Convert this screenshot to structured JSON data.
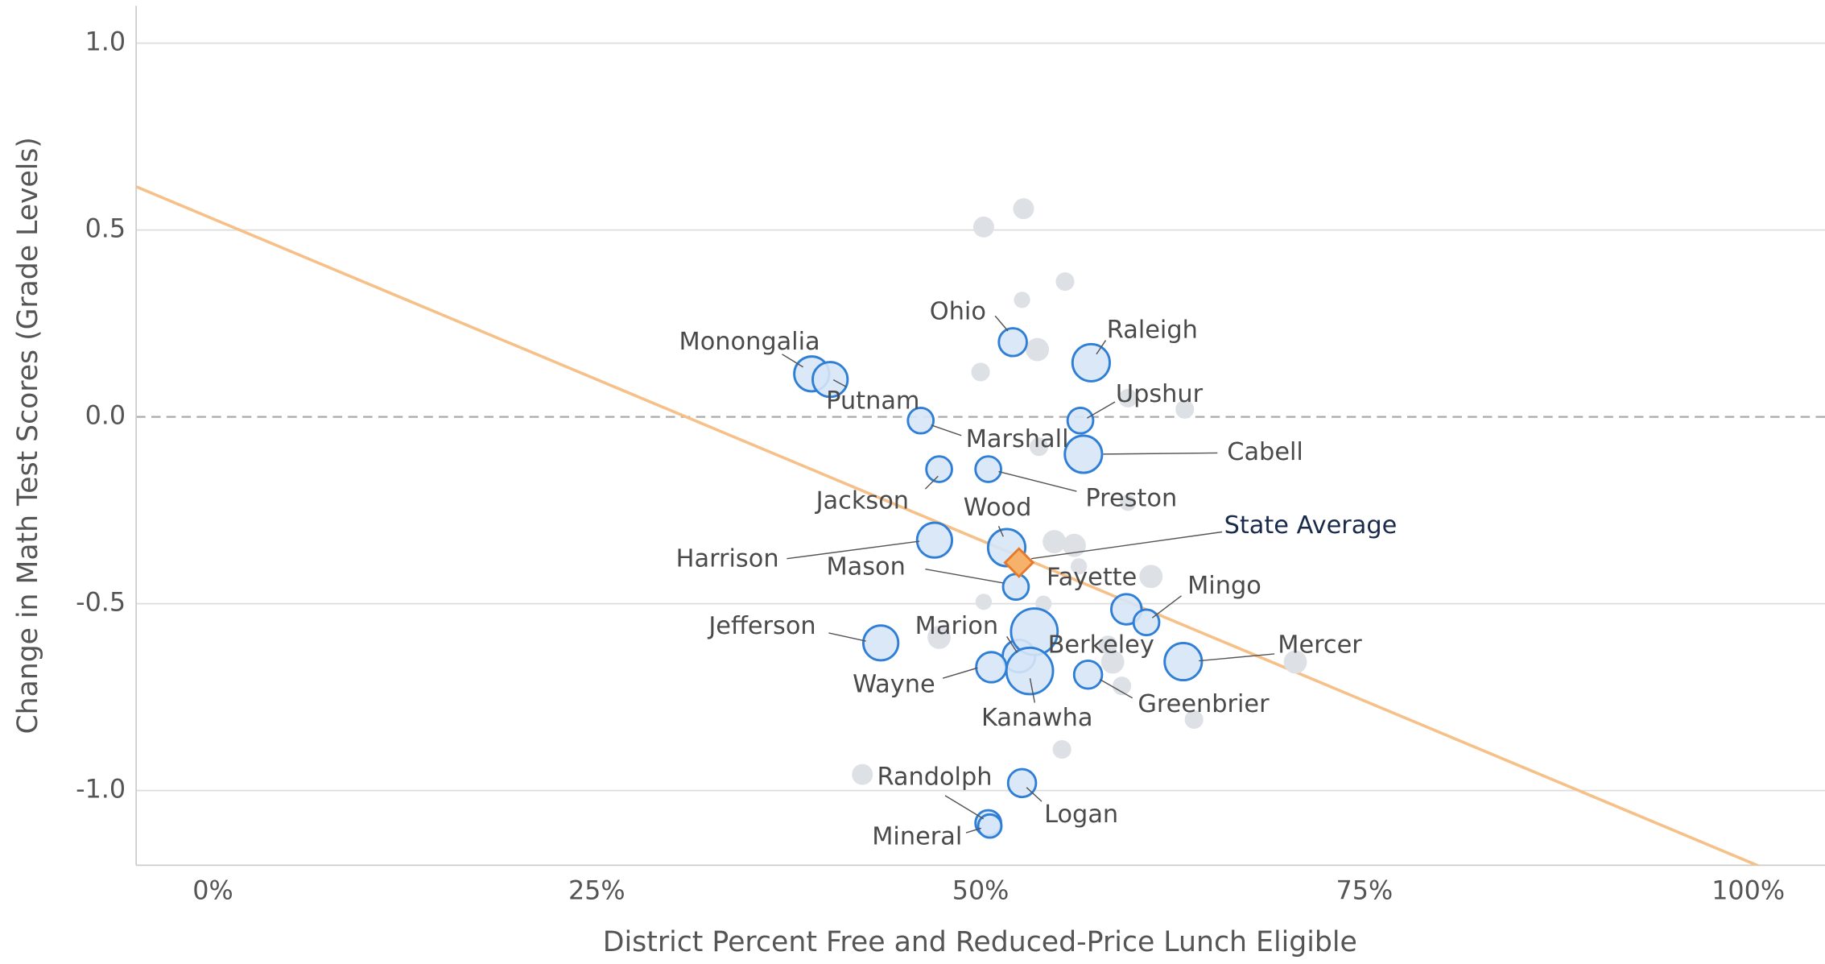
{
  "chart_data": {
    "type": "scatter",
    "x_label": "District Percent Free and Reduced-Price Lunch Eligible",
    "y_label": "Change in Math Test Scores (Grade Levels)",
    "xlim": [
      -5,
      105
    ],
    "ylim": [
      -1.2,
      1.1
    ],
    "xticks": [
      {
        "value": 0,
        "label": "0%"
      },
      {
        "value": 25,
        "label": "25%"
      },
      {
        "value": 50,
        "label": "50%"
      },
      {
        "value": 75,
        "label": "75%"
      },
      {
        "value": 100,
        "label": "100%"
      }
    ],
    "yticks": [
      {
        "value": -1,
        "label": "-1.0"
      },
      {
        "value": -0.5,
        "label": "-0.5"
      },
      {
        "value": 0,
        "label": "0.0"
      },
      {
        "value": 0.5,
        "label": "0.5"
      },
      {
        "value": 1,
        "label": "1.0"
      }
    ],
    "grid": true,
    "series": [
      {
        "name": "Monongalia",
        "color": "#2f7fd6",
        "x": [
          39.0
        ],
        "values": [
          0.115
        ],
        "sizes": [
          15
        ]
      },
      {
        "name": "Putnam",
        "color": "#2f7fd6",
        "x": [
          40.2
        ],
        "values": [
          0.1
        ],
        "sizes": [
          15
        ]
      },
      {
        "name": "Ohio",
        "color": "#2f7fd6",
        "x": [
          52.1
        ],
        "values": [
          0.2
        ],
        "sizes": [
          12
        ]
      },
      {
        "name": "Raleigh",
        "color": "#2f7fd6",
        "x": [
          57.2
        ],
        "values": [
          0.145
        ],
        "sizes": [
          16
        ]
      },
      {
        "name": "Upshur",
        "color": "#2f7fd6",
        "x": [
          56.5
        ],
        "values": [
          -0.01
        ],
        "sizes": [
          11
        ]
      },
      {
        "name": "Marshall",
        "color": "#2f7fd6",
        "x": [
          46.1
        ],
        "values": [
          -0.01
        ],
        "sizes": [
          11
        ]
      },
      {
        "name": "Cabell",
        "color": "#2f7fd6",
        "x": [
          56.7
        ],
        "values": [
          -0.1
        ],
        "sizes": [
          16
        ]
      },
      {
        "name": "Jackson",
        "color": "#2f7fd6",
        "x": [
          47.3
        ],
        "values": [
          -0.14
        ],
        "sizes": [
          11
        ]
      },
      {
        "name": "Preston",
        "color": "#2f7fd6",
        "x": [
          50.5
        ],
        "values": [
          -0.14
        ],
        "sizes": [
          11
        ]
      },
      {
        "name": "Wood",
        "color": "#2f7fd6",
        "x": [
          51.7
        ],
        "values": [
          -0.35
        ],
        "sizes": [
          16
        ]
      },
      {
        "name": "Harrison",
        "color": "#2f7fd6",
        "x": [
          47.0
        ],
        "values": [
          -0.33
        ],
        "sizes": [
          15
        ]
      },
      {
        "name": "Mason",
        "color": "#2f7fd6",
        "x": [
          52.3
        ],
        "values": [
          -0.455
        ],
        "sizes": [
          11
        ]
      },
      {
        "name": "Fayette",
        "color": "#2f7fd6",
        "x": [
          59.5
        ],
        "values": [
          -0.515
        ],
        "sizes": [
          13
        ]
      },
      {
        "name": "Mingo",
        "color": "#2f7fd6",
        "x": [
          60.8
        ],
        "values": [
          -0.55
        ],
        "sizes": [
          11
        ]
      },
      {
        "name": "Jefferson",
        "color": "#2f7fd6",
        "x": [
          43.5
        ],
        "values": [
          -0.605
        ],
        "sizes": [
          15
        ]
      },
      {
        "name": "Marion",
        "color": "#2f7fd6",
        "x": [
          52.5
        ],
        "values": [
          -0.64
        ],
        "sizes": [
          14
        ]
      },
      {
        "name": "Berkeley",
        "color": "#2f7fd6",
        "x": [
          53.5
        ],
        "values": [
          -0.575
        ],
        "sizes": [
          20
        ]
      },
      {
        "name": "Wayne",
        "color": "#2f7fd6",
        "x": [
          50.7
        ],
        "values": [
          -0.67
        ],
        "sizes": [
          13
        ]
      },
      {
        "name": "Kanawha",
        "color": "#2f7fd6",
        "x": [
          53.2
        ],
        "values": [
          -0.68
        ],
        "sizes": [
          20
        ]
      },
      {
        "name": "Greenbrier",
        "color": "#2f7fd6",
        "x": [
          57.0
        ],
        "values": [
          -0.69
        ],
        "sizes": [
          12
        ]
      },
      {
        "name": "Mercer",
        "color": "#2f7fd6",
        "x": [
          63.2
        ],
        "values": [
          -0.655
        ],
        "sizes": [
          16
        ]
      },
      {
        "name": "Randolph",
        "color": "#2f7fd6",
        "x": [
          50.5
        ],
        "values": [
          -1.087
        ],
        "sizes": [
          11
        ]
      },
      {
        "name": "Mineral",
        "color": "#2f7fd6",
        "x": [
          50.6
        ],
        "values": [
          -1.095
        ],
        "sizes": [
          10
        ]
      },
      {
        "name": "Logan",
        "color": "#2f7fd6",
        "x": [
          52.7
        ],
        "values": [
          -0.98
        ],
        "sizes": [
          12
        ]
      }
    ],
    "other_districts": {
      "color": "#dde1e6",
      "x": [
        52.8,
        50.2,
        55.5,
        52.7,
        53.7,
        50.0,
        59.6,
        63.3,
        53.8,
        59.6,
        54.8,
        56.1,
        56.4,
        61.1,
        50.2,
        54.1,
        47.3,
        58.6,
        58.3,
        59.2,
        70.5,
        63.9,
        55.3,
        42.3
      ],
      "values": [
        0.557,
        0.508,
        0.362,
        0.313,
        0.18,
        0.12,
        0.05,
        0.02,
        -0.08,
        -0.23,
        -0.334,
        -0.344,
        -0.4,
        -0.427,
        -0.495,
        -0.5,
        -0.59,
        -0.656,
        -0.61,
        -0.72,
        -0.656,
        -0.81,
        -0.89,
        -0.957
      ],
      "sizes": [
        9,
        9,
        8,
        7,
        10,
        8,
        8,
        8,
        8,
        7,
        10,
        10,
        7,
        10,
        7,
        7,
        10,
        10,
        8,
        8,
        10,
        8,
        8,
        9
      ]
    },
    "state_average": {
      "name": "State Average",
      "color": "#f6b26b",
      "x": 52.5,
      "value": -0.39
    },
    "trendline": {
      "color": "#f6c089",
      "x": [
        -5,
        105
      ],
      "values": [
        0.616,
        -1.276
      ]
    }
  }
}
